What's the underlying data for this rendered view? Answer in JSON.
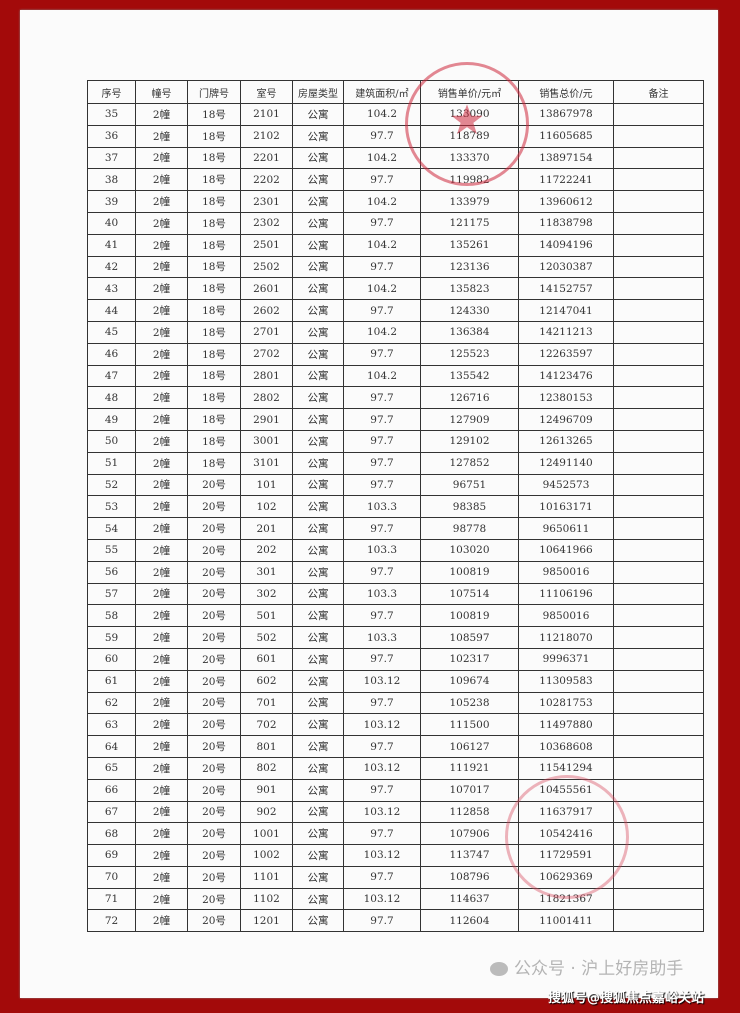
{
  "columns": [
    "序号",
    "幢号",
    "门牌号",
    "室号",
    "房屋类型",
    "建筑面积/㎡",
    "销售单价/元㎡",
    "销售总价/元",
    "备注"
  ],
  "rows": [
    [
      "35",
      "2幢",
      "18号",
      "2101",
      "公寓",
      "104.2",
      "133090",
      "13867978",
      ""
    ],
    [
      "36",
      "2幢",
      "18号",
      "2102",
      "公寓",
      "97.7",
      "118789",
      "11605685",
      ""
    ],
    [
      "37",
      "2幢",
      "18号",
      "2201",
      "公寓",
      "104.2",
      "133370",
      "13897154",
      ""
    ],
    [
      "38",
      "2幢",
      "18号",
      "2202",
      "公寓",
      "97.7",
      "119982",
      "11722241",
      ""
    ],
    [
      "39",
      "2幢",
      "18号",
      "2301",
      "公寓",
      "104.2",
      "133979",
      "13960612",
      ""
    ],
    [
      "40",
      "2幢",
      "18号",
      "2302",
      "公寓",
      "97.7",
      "121175",
      "11838798",
      ""
    ],
    [
      "41",
      "2幢",
      "18号",
      "2501",
      "公寓",
      "104.2",
      "135261",
      "14094196",
      ""
    ],
    [
      "42",
      "2幢",
      "18号",
      "2502",
      "公寓",
      "97.7",
      "123136",
      "12030387",
      ""
    ],
    [
      "43",
      "2幢",
      "18号",
      "2601",
      "公寓",
      "104.2",
      "135823",
      "14152757",
      ""
    ],
    [
      "44",
      "2幢",
      "18号",
      "2602",
      "公寓",
      "97.7",
      "124330",
      "12147041",
      ""
    ],
    [
      "45",
      "2幢",
      "18号",
      "2701",
      "公寓",
      "104.2",
      "136384",
      "14211213",
      ""
    ],
    [
      "46",
      "2幢",
      "18号",
      "2702",
      "公寓",
      "97.7",
      "125523",
      "12263597",
      ""
    ],
    [
      "47",
      "2幢",
      "18号",
      "2801",
      "公寓",
      "104.2",
      "135542",
      "14123476",
      ""
    ],
    [
      "48",
      "2幢",
      "18号",
      "2802",
      "公寓",
      "97.7",
      "126716",
      "12380153",
      ""
    ],
    [
      "49",
      "2幢",
      "18号",
      "2901",
      "公寓",
      "97.7",
      "127909",
      "12496709",
      ""
    ],
    [
      "50",
      "2幢",
      "18号",
      "3001",
      "公寓",
      "97.7",
      "129102",
      "12613265",
      ""
    ],
    [
      "51",
      "2幢",
      "18号",
      "3101",
      "公寓",
      "97.7",
      "127852",
      "12491140",
      ""
    ],
    [
      "52",
      "2幢",
      "20号",
      "101",
      "公寓",
      "97.7",
      "96751",
      "9452573",
      ""
    ],
    [
      "53",
      "2幢",
      "20号",
      "102",
      "公寓",
      "103.3",
      "98385",
      "10163171",
      ""
    ],
    [
      "54",
      "2幢",
      "20号",
      "201",
      "公寓",
      "97.7",
      "98778",
      "9650611",
      ""
    ],
    [
      "55",
      "2幢",
      "20号",
      "202",
      "公寓",
      "103.3",
      "103020",
      "10641966",
      ""
    ],
    [
      "56",
      "2幢",
      "20号",
      "301",
      "公寓",
      "97.7",
      "100819",
      "9850016",
      ""
    ],
    [
      "57",
      "2幢",
      "20号",
      "302",
      "公寓",
      "103.3",
      "107514",
      "11106196",
      ""
    ],
    [
      "58",
      "2幢",
      "20号",
      "501",
      "公寓",
      "97.7",
      "100819",
      "9850016",
      ""
    ],
    [
      "59",
      "2幢",
      "20号",
      "502",
      "公寓",
      "103.3",
      "108597",
      "11218070",
      ""
    ],
    [
      "60",
      "2幢",
      "20号",
      "601",
      "公寓",
      "97.7",
      "102317",
      "9996371",
      ""
    ],
    [
      "61",
      "2幢",
      "20号",
      "602",
      "公寓",
      "103.12",
      "109674",
      "11309583",
      ""
    ],
    [
      "62",
      "2幢",
      "20号",
      "701",
      "公寓",
      "97.7",
      "105238",
      "10281753",
      ""
    ],
    [
      "63",
      "2幢",
      "20号",
      "702",
      "公寓",
      "103.12",
      "111500",
      "11497880",
      ""
    ],
    [
      "64",
      "2幢",
      "20号",
      "801",
      "公寓",
      "97.7",
      "106127",
      "10368608",
      ""
    ],
    [
      "65",
      "2幢",
      "20号",
      "802",
      "公寓",
      "103.12",
      "111921",
      "11541294",
      ""
    ],
    [
      "66",
      "2幢",
      "20号",
      "901",
      "公寓",
      "97.7",
      "107017",
      "10455561",
      ""
    ],
    [
      "67",
      "2幢",
      "20号",
      "902",
      "公寓",
      "103.12",
      "112858",
      "11637917",
      ""
    ],
    [
      "68",
      "2幢",
      "20号",
      "1001",
      "公寓",
      "97.7",
      "107906",
      "10542416",
      ""
    ],
    [
      "69",
      "2幢",
      "20号",
      "1002",
      "公寓",
      "103.12",
      "113747",
      "11729591",
      ""
    ],
    [
      "70",
      "2幢",
      "20号",
      "1101",
      "公寓",
      "97.7",
      "108796",
      "10629369",
      ""
    ],
    [
      "71",
      "2幢",
      "20号",
      "1102",
      "公寓",
      "103.12",
      "114637",
      "11821367",
      ""
    ],
    [
      "72",
      "2幢",
      "20号",
      "1201",
      "公寓",
      "97.7",
      "112604",
      "11001411",
      ""
    ]
  ],
  "watermark": {
    "wechat": "公众号 · 沪上好房助手",
    "sohu": "搜狐号@搜狐焦点嘉峪关站"
  },
  "colors": {
    "frame": "#a30a0a",
    "stamp": "#cd283c"
  }
}
